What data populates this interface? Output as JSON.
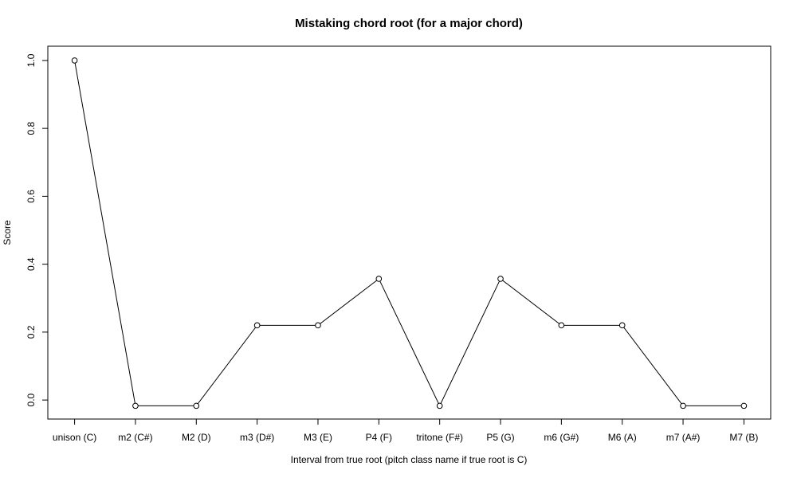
{
  "chart_data": {
    "type": "line",
    "title": "Mistaking chord root (for a major chord)",
    "x_label": "Interval from true root (pitch class name if true root is C)",
    "y_label": "Score",
    "categories": [
      "unison (C)",
      "m2 (C#)",
      "M2 (D)",
      "m3 (D#)",
      "M3 (E)",
      "P4 (F)",
      "tritone (F#)",
      "P5 (G)",
      "m6 (G#)",
      "M6 (A)",
      "m7 (A#)",
      "M7 (B)"
    ],
    "values": [
      1.0,
      -0.017,
      -0.017,
      0.22,
      0.22,
      0.357,
      -0.017,
      0.357,
      0.22,
      0.22,
      -0.017,
      -0.017
    ],
    "color": "#000000",
    "ylim": [
      -0.056,
      1.042
    ],
    "yticks": [
      {
        "value": 0,
        "label": "0.0"
      },
      0.2,
      0.4,
      0.6,
      0.8,
      {
        "value": 1,
        "label": "1.0"
      }
    ],
    "grid": false
  }
}
